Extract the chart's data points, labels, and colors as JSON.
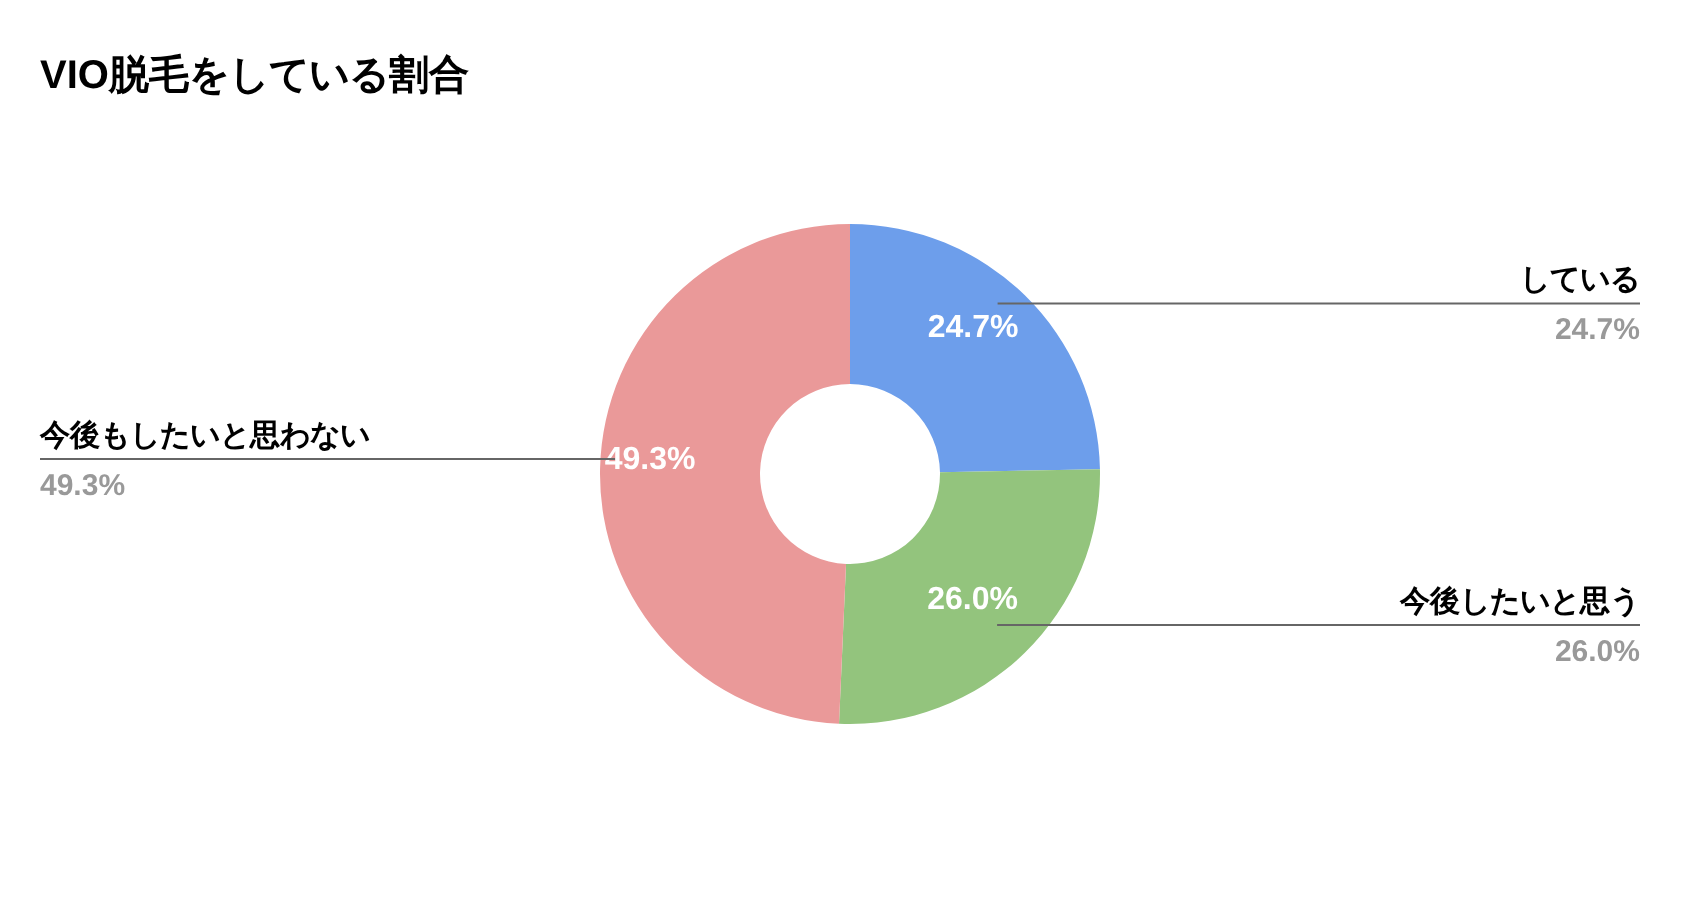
{
  "chart_data": {
    "type": "donut",
    "title": "VIO脱毛をしている割合",
    "categories": [
      "している",
      "今後したいと思う",
      "今後もしたいと思わない"
    ],
    "values": [
      24.7,
      26.0,
      49.3
    ],
    "value_labels": [
      "24.7%",
      "26.0%",
      "49.3%"
    ],
    "colors": [
      "#6d9eeb",
      "#93c47d",
      "#ea9999"
    ]
  }
}
